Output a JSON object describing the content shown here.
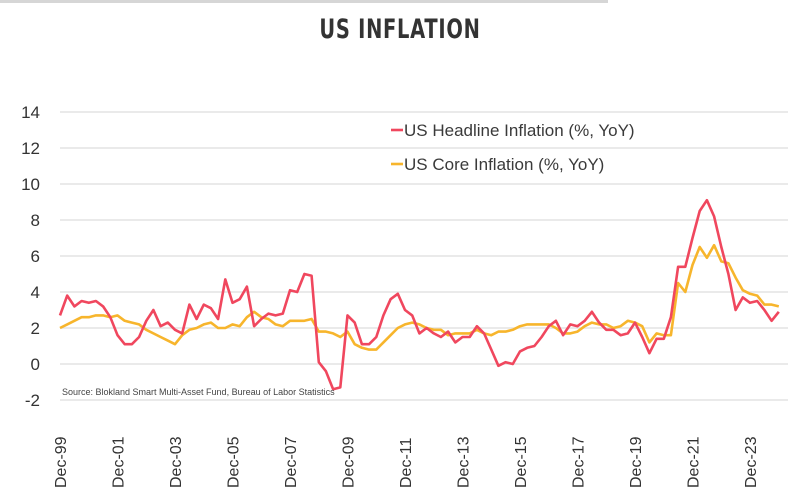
{
  "chart_data": {
    "type": "line",
    "title": "US INFLATION",
    "source": "Source: Blokland Smart Multi-Asset Fund, Bureau of Labor Statistics",
    "ylim": [
      -2,
      14
    ],
    "yticks": [
      14,
      12,
      10,
      8,
      6,
      4,
      2,
      0,
      -2
    ],
    "xtick_labels": [
      "Dec-99",
      "Dec-01",
      "Dec-03",
      "Dec-05",
      "Dec-07",
      "Dec-09",
      "Dec-11",
      "Dec-13",
      "Dec-15",
      "Dec-17",
      "Dec-19",
      "Dec-21",
      "Dec-23"
    ],
    "grid": true,
    "legend_position": "top-right",
    "x": [
      "1999-12",
      "2000-03",
      "2000-06",
      "2000-09",
      "2000-12",
      "2001-03",
      "2001-06",
      "2001-09",
      "2001-12",
      "2002-03",
      "2002-06",
      "2002-09",
      "2002-12",
      "2003-03",
      "2003-06",
      "2003-09",
      "2003-12",
      "2004-03",
      "2004-06",
      "2004-09",
      "2004-12",
      "2005-03",
      "2005-06",
      "2005-09",
      "2005-12",
      "2006-03",
      "2006-06",
      "2006-09",
      "2006-12",
      "2007-03",
      "2007-06",
      "2007-09",
      "2007-12",
      "2008-03",
      "2008-06",
      "2008-09",
      "2008-12",
      "2009-03",
      "2009-06",
      "2009-09",
      "2009-12",
      "2010-03",
      "2010-06",
      "2010-09",
      "2010-12",
      "2011-03",
      "2011-06",
      "2011-09",
      "2011-12",
      "2012-03",
      "2012-06",
      "2012-09",
      "2012-12",
      "2013-03",
      "2013-06",
      "2013-09",
      "2013-12",
      "2014-03",
      "2014-06",
      "2014-09",
      "2014-12",
      "2015-03",
      "2015-06",
      "2015-09",
      "2015-12",
      "2016-03",
      "2016-06",
      "2016-09",
      "2016-12",
      "2017-03",
      "2017-06",
      "2017-09",
      "2017-12",
      "2018-03",
      "2018-06",
      "2018-09",
      "2018-12",
      "2019-03",
      "2019-06",
      "2019-09",
      "2019-12",
      "2020-03",
      "2020-06",
      "2020-09",
      "2020-12",
      "2021-03",
      "2021-06",
      "2021-09",
      "2021-12",
      "2022-03",
      "2022-06",
      "2022-09",
      "2022-12",
      "2023-03",
      "2023-06",
      "2023-09",
      "2023-12",
      "2024-03",
      "2024-06",
      "2024-09",
      "2024-12"
    ],
    "series": [
      {
        "name": "US Headline Inflation (%, YoY)",
        "color": "#f0475e",
        "values": [
          2.7,
          3.8,
          3.2,
          3.5,
          3.4,
          3.5,
          3.2,
          2.6,
          1.6,
          1.1,
          1.1,
          1.5,
          2.4,
          3.0,
          2.1,
          2.3,
          1.9,
          1.7,
          3.3,
          2.5,
          3.3,
          3.1,
          2.5,
          4.7,
          3.4,
          3.6,
          4.3,
          2.1,
          2.5,
          2.8,
          2.7,
          2.8,
          4.1,
          4.0,
          5.0,
          4.9,
          0.1,
          -0.4,
          -1.4,
          -1.3,
          2.7,
          2.3,
          1.1,
          1.1,
          1.5,
          2.7,
          3.6,
          3.9,
          3.0,
          2.7,
          1.7,
          2.0,
          1.7,
          1.5,
          1.8,
          1.2,
          1.5,
          1.5,
          2.1,
          1.7,
          0.8,
          -0.1,
          0.1,
          0.0,
          0.7,
          0.9,
          1.0,
          1.5,
          2.1,
          2.4,
          1.6,
          2.2,
          2.1,
          2.4,
          2.9,
          2.3,
          1.9,
          1.9,
          1.6,
          1.7,
          2.3,
          1.5,
          0.6,
          1.4,
          1.4,
          2.6,
          5.4,
          5.4,
          7.0,
          8.5,
          9.1,
          8.2,
          6.5,
          5.0,
          3.0,
          3.7,
          3.4,
          3.5,
          3.0,
          2.4,
          2.9
        ]
      },
      {
        "name": "US Core Inflation (%, YoY)",
        "color": "#f7b52c",
        "values": [
          2.0,
          2.2,
          2.4,
          2.6,
          2.6,
          2.7,
          2.7,
          2.6,
          2.7,
          2.4,
          2.3,
          2.2,
          1.9,
          1.7,
          1.5,
          1.3,
          1.1,
          1.6,
          1.9,
          2.0,
          2.2,
          2.3,
          2.0,
          2.0,
          2.2,
          2.1,
          2.6,
          2.9,
          2.6,
          2.5,
          2.2,
          2.1,
          2.4,
          2.4,
          2.4,
          2.5,
          1.8,
          1.8,
          1.7,
          1.5,
          1.8,
          1.1,
          0.9,
          0.8,
          0.8,
          1.2,
          1.6,
          2.0,
          2.2,
          2.3,
          2.2,
          2.0,
          1.9,
          1.9,
          1.6,
          1.7,
          1.7,
          1.7,
          1.9,
          1.7,
          1.6,
          1.8,
          1.8,
          1.9,
          2.1,
          2.2,
          2.2,
          2.2,
          2.2,
          2.0,
          1.7,
          1.7,
          1.8,
          2.1,
          2.3,
          2.2,
          2.2,
          2.0,
          2.1,
          2.4,
          2.3,
          2.1,
          1.2,
          1.7,
          1.6,
          1.6,
          4.5,
          4.0,
          5.5,
          6.5,
          5.9,
          6.6,
          5.7,
          5.6,
          4.8,
          4.1,
          3.9,
          3.8,
          3.3,
          3.3,
          3.2
        ]
      }
    ]
  }
}
